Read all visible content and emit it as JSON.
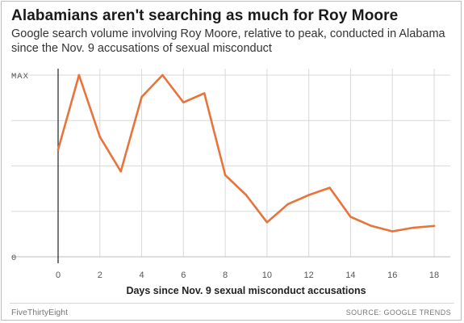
{
  "header": {
    "title": "Alabamians aren't searching as much for Roy Moore",
    "subtitle": "Google search volume involving Roy Moore, relative to peak, conducted in Alabama since the Nov. 9 accusations of sexual misconduct"
  },
  "footer": {
    "brand": "FiveThirtyEight",
    "source": "SOURCE: GOOGLE TRENDS"
  },
  "colors": {
    "line": "#e8733b",
    "grid": "#d9d9d9",
    "axis": "#222222",
    "tick_text": "#555555"
  },
  "chart_data": {
    "type": "line",
    "title": "Alabamians aren't searching as much for Roy Moore",
    "xlabel": "Days since Nov. 9 sexual misconduct accusations",
    "ylabel": "",
    "x": [
      0,
      1,
      2,
      3,
      4,
      5,
      6,
      7,
      8,
      9,
      10,
      11,
      12,
      13,
      14,
      15,
      16,
      17,
      18
    ],
    "series": [
      {
        "values": [
          59,
          100,
          66,
          47,
          88,
          100,
          85,
          90,
          45,
          34,
          19,
          29,
          34,
          38,
          22,
          17,
          14,
          16,
          17
        ]
      }
    ],
    "xlim": [
      0,
      18
    ],
    "ylim": [
      0,
      100
    ],
    "x_ticks": [
      0,
      2,
      4,
      6,
      8,
      10,
      12,
      14,
      16,
      18
    ],
    "y_ticks": [
      {
        "value": 0,
        "label": "0"
      },
      {
        "value": 100,
        "label": "MAX"
      }
    ],
    "grid": true
  }
}
